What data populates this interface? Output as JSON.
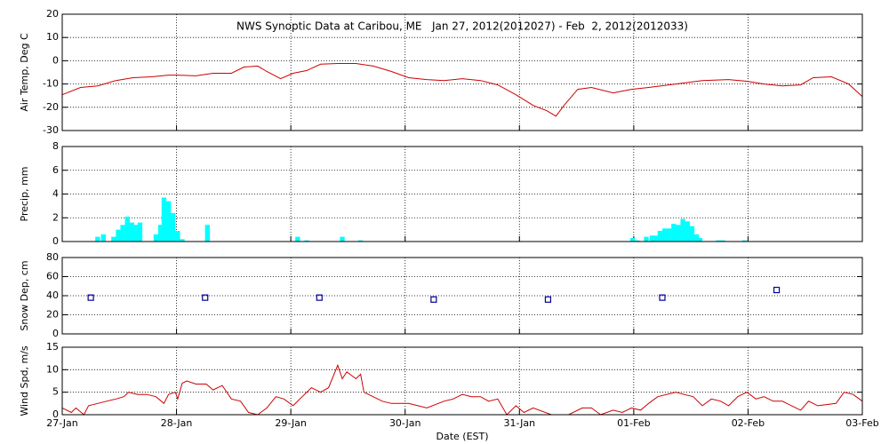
{
  "chart_data": [
    {
      "type": "line",
      "title": "NWS Synoptic Data at Caribou, ME   Jan 27, 2012(2012027) - Feb  2, 2012(2012033)",
      "ylabel": "Air Temp, Deg C",
      "color": "#cc0000",
      "grid": true,
      "xlim": [
        0,
        7
      ],
      "ylim": [
        -30,
        20
      ],
      "yticks": [
        -30,
        -20,
        -10,
        0,
        10,
        20
      ],
      "x": [
        0,
        0.16,
        0.31,
        0.47,
        0.62,
        0.78,
        0.93,
        1.01,
        1.17,
        1.32,
        1.48,
        1.59,
        1.71,
        1.79,
        1.91,
        2.02,
        2.14,
        2.26,
        2.41,
        2.57,
        2.72,
        2.88,
        3.03,
        3.19,
        3.34,
        3.5,
        3.66,
        3.81,
        3.97,
        4.12,
        4.24,
        4.32,
        4.39,
        4.51,
        4.63,
        4.82,
        4.98,
        5.13,
        5.37,
        5.6,
        5.83,
        5.99,
        6.14,
        6.3,
        6.46,
        6.57,
        6.73,
        6.88,
        7
      ],
      "values": [
        -14.6,
        -11.5,
        -10.8,
        -8.5,
        -7.3,
        -6.9,
        -6.2,
        -6.2,
        -6.5,
        -5.4,
        -5.4,
        -2.7,
        -2.3,
        -4.6,
        -7.7,
        -5.4,
        -4.2,
        -1.5,
        -1.2,
        -1.2,
        -2.3,
        -4.6,
        -7.3,
        -8.1,
        -8.5,
        -7.7,
        -8.5,
        -10.4,
        -14.6,
        -19.2,
        -21.5,
        -23.8,
        -19.2,
        -12.3,
        -11.5,
        -13.8,
        -12.3,
        -11.5,
        -10,
        -8.5,
        -8.1,
        -8.8,
        -10,
        -10.8,
        -10.4,
        -7.3,
        -6.9,
        -10,
        -15.4
      ]
    },
    {
      "type": "bar",
      "ylabel": "Precip, mm",
      "color": "#00ffff",
      "grid": true,
      "xlim": [
        0,
        7
      ],
      "ylim": [
        0,
        8
      ],
      "yticks": [
        0,
        2,
        4,
        6,
        8
      ],
      "x": [
        0.31,
        0.36,
        0.45,
        0.49,
        0.53,
        0.57,
        0.61,
        0.65,
        0.68,
        0.82,
        0.86,
        0.89,
        0.93,
        0.97,
        1.01,
        1.05,
        1.27,
        2.06,
        2.14,
        2.45,
        2.61,
        4.99,
        5.03,
        5.11,
        5.16,
        5.2,
        5.23,
        5.27,
        5.31,
        5.35,
        5.39,
        5.43,
        5.47,
        5.51,
        5.55,
        5.58,
        5.74,
        5.78,
        5.97
      ],
      "values": [
        0.4,
        0.6,
        0.4,
        1.0,
        1.4,
        2.1,
        1.6,
        1.4,
        1.6,
        0.6,
        1.4,
        3.7,
        3.4,
        2.4,
        0.9,
        0.2,
        1.4,
        0.4,
        0.1,
        0.4,
        0.1,
        0.3,
        0.1,
        0.4,
        0.5,
        0.5,
        0.9,
        1.1,
        1.1,
        1.5,
        1.4,
        1.9,
        1.7,
        1.3,
        0.6,
        0.3,
        0.1,
        0.1,
        0.1
      ]
    },
    {
      "type": "scatter",
      "ylabel": "Snow Dep, cm",
      "color": "#000099",
      "grid": true,
      "xlim": [
        0,
        7
      ],
      "ylim": [
        0,
        80
      ],
      "yticks": [
        0,
        20,
        40,
        60,
        80
      ],
      "x": [
        0.25,
        1.25,
        2.25,
        3.25,
        4.25,
        5.25,
        6.25
      ],
      "values": [
        38,
        38,
        38,
        36,
        36,
        38,
        46
      ]
    },
    {
      "type": "line",
      "ylabel": "Wind Spd, m/s",
      "xlabel": "Date (EST)",
      "color": "#cc0000",
      "grid": true,
      "xlim": [
        0,
        7
      ],
      "ylim": [
        0,
        15
      ],
      "yticks": [
        0,
        5,
        10,
        15
      ],
      "xticks": [
        {
          "value": 0,
          "label": "27-Jan"
        },
        {
          "value": 1,
          "label": "28-Jan"
        },
        {
          "value": 2,
          "label": "29-Jan"
        },
        {
          "value": 3,
          "label": "30-Jan"
        },
        {
          "value": 4,
          "label": "31-Jan"
        },
        {
          "value": 5,
          "label": "01-Feb"
        },
        {
          "value": 6,
          "label": "02-Feb"
        },
        {
          "value": 7,
          "label": "03-Feb"
        }
      ],
      "x": [
        0,
        0.08,
        0.12,
        0.19,
        0.23,
        0.31,
        0.39,
        0.47,
        0.54,
        0.58,
        0.66,
        0.74,
        0.82,
        0.89,
        0.93,
        0.99,
        1.01,
        1.05,
        1.09,
        1.17,
        1.26,
        1.32,
        1.4,
        1.48,
        1.56,
        1.63,
        1.71,
        1.79,
        1.87,
        1.94,
        2.02,
        2.1,
        2.18,
        2.26,
        2.33,
        2.41,
        2.45,
        2.49,
        2.57,
        2.61,
        2.64,
        2.72,
        2.8,
        2.88,
        3.03,
        3.19,
        3.34,
        3.42,
        3.5,
        3.58,
        3.66,
        3.73,
        3.81,
        3.89,
        3.97,
        4.04,
        4.12,
        4.28,
        4.43,
        4.55,
        4.63,
        4.71,
        4.82,
        4.9,
        4.98,
        5.06,
        5.13,
        5.21,
        5.37,
        5.44,
        5.52,
        5.6,
        5.68,
        5.76,
        5.83,
        5.91,
        5.99,
        6.07,
        6.14,
        6.22,
        6.3,
        6.38,
        6.46,
        6.53,
        6.61,
        6.77,
        6.84,
        6.92,
        7
      ],
      "values": [
        1.5,
        0.5,
        1.5,
        0,
        2,
        2.5,
        3,
        3.5,
        4,
        5,
        4.5,
        4.5,
        4,
        2.5,
        4.5,
        5,
        3.5,
        7,
        7.5,
        6.8,
        6.8,
        5.5,
        6.5,
        3.5,
        3,
        0.5,
        0,
        1.5,
        4,
        3.5,
        2,
        4,
        6,
        5,
        6,
        11,
        8,
        9.5,
        8,
        9,
        5,
        4,
        3,
        2.5,
        2.5,
        1.5,
        3,
        3.5,
        4.5,
        4,
        4,
        3,
        3.5,
        0,
        2,
        0.5,
        1.5,
        0,
        0,
        1.5,
        1.5,
        0,
        1,
        0.5,
        1.5,
        1,
        2.5,
        4,
        5,
        4.5,
        4,
        2,
        3.5,
        3,
        2,
        4,
        5,
        3.5,
        4,
        3,
        3,
        2,
        1,
        3,
        2,
        2.5,
        5,
        4.5,
        3
      ]
    }
  ]
}
